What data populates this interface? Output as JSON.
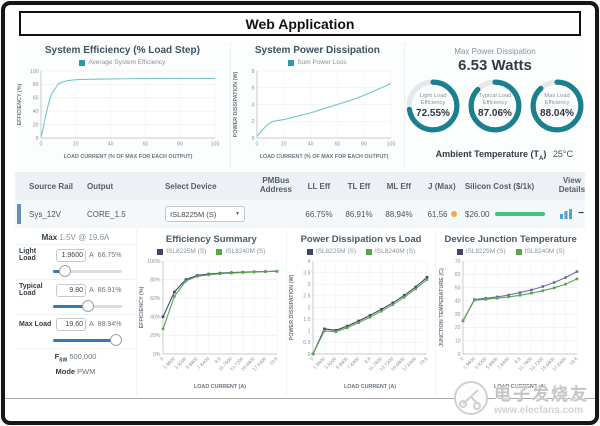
{
  "window": {
    "title": "Web Application"
  },
  "top": {
    "summary": {
      "max_power_label": "Max Power Dissipation",
      "max_power_value": "6.53 Watts",
      "gauges": [
        {
          "label1": "Light Load",
          "label2": "Efficiency",
          "value": "72.55%",
          "pct": 72.55
        },
        {
          "label1": "Typical Load",
          "label2": "Efficiency",
          "value": "87.06%",
          "pct": 87.06
        },
        {
          "label1": "Max Load",
          "label2": "Efficiency",
          "value": "88.04%",
          "pct": 88.04
        }
      ],
      "ambient_label_pre": "Ambient Temperature (T",
      "ambient_label_sub": "A",
      "ambient_label_post": ")",
      "ambient_value": "25°C"
    }
  },
  "table": {
    "headers": [
      "Source Rail",
      "Output",
      "Select Device",
      "PMBus Address",
      "LL Eff",
      "TL Eff",
      "ML Eff",
      "J (Max)",
      "Silicon Cost ($/1k)",
      "View Details"
    ],
    "row": {
      "source_rail": "Sys_12V",
      "output": "CORE_1.5",
      "device": "ISL8225M (S)",
      "caret": "▼",
      "pmbus": "",
      "ll_eff": "66.75%",
      "tl_eff": "86.91%",
      "ml_eff": "88.94%",
      "j_max": "61.56",
      "cost": "$26.00",
      "collapse": "−"
    }
  },
  "controls": {
    "max_label": "Max",
    "max_value": "1.5V @ 19.6A",
    "rows": [
      {
        "label": "Light Load",
        "value": "1.9600",
        "unit": "A",
        "pct": "66.75%",
        "slider": 10
      },
      {
        "label": "Typical Load",
        "value": "9.80",
        "unit": "A",
        "pct": "86.91%",
        "slider": 50
      },
      {
        "label": "Max Load",
        "value": "19.60",
        "unit": "A",
        "pct": "88.94%",
        "slider": 100
      }
    ],
    "fsw_label": "F",
    "fsw_sub": "SW",
    "fsw_value": "500,000",
    "mode_label": "Mode",
    "mode_value": "PWM"
  },
  "watermark": {
    "brand": "电子发烧友",
    "url": "www.elecfans.com"
  },
  "colors": {
    "teal_line": "#74c6c8",
    "teal_legend": "#2e9aa6",
    "gauge_ring": "#1a7f8e",
    "navy_series": "#41436a",
    "green_series": "#5aa44e",
    "accent_bar": "#6a8fb5",
    "cost_bar_green": "#41c47e",
    "warn_dot_yellow": "#eab13f"
  },
  "chart_data": [
    {
      "id": "system-efficiency",
      "type": "line",
      "title": "System Efficiency (% Load Step)",
      "xlabel": "LOAD CURRENT (% OF MAX FOR EACH OUTPUT)",
      "ylabel": "EFFICIENCY (%)",
      "xlim": [
        0,
        100
      ],
      "ylim": [
        0,
        100
      ],
      "xticks": [
        0,
        20,
        40,
        60,
        80,
        100
      ],
      "xtick_labels": [
        "0",
        "20",
        "40",
        "60",
        "80",
        "100"
      ],
      "yticks": [
        0,
        20,
        40,
        60,
        80,
        100
      ],
      "ytick_labels": [
        "0",
        "20",
        "40",
        "60",
        "80",
        "100"
      ],
      "rotate_x": false,
      "markers": false,
      "grid": true,
      "legend_position": "top",
      "series": [
        {
          "name": "Average System Efficiency",
          "color": "#74c6c8",
          "legend_color": "#2e9aa6",
          "x": [
            0,
            1,
            2,
            4,
            6,
            10,
            15,
            20,
            30,
            40,
            60,
            80,
            100
          ],
          "y": [
            2,
            12,
            25,
            48,
            65,
            81,
            85.5,
            87,
            87.8,
            88.2,
            88.6,
            88.8,
            89
          ]
        }
      ]
    },
    {
      "id": "system-power",
      "type": "line",
      "title": "System Power Dissipation",
      "xlabel": "LOAD CURRENT (% OF MAX FOR EACH OUTPUT)",
      "ylabel": "POWER DISSIPATION (W)",
      "xlim": [
        0,
        100
      ],
      "ylim": [
        0,
        8
      ],
      "xticks": [
        0,
        20,
        40,
        60,
        80,
        100
      ],
      "xtick_labels": [
        "0",
        "20",
        "40",
        "60",
        "80",
        "100"
      ],
      "yticks": [
        0,
        2,
        4,
        6,
        8
      ],
      "ytick_labels": [
        "0",
        "2",
        "4",
        "6",
        "8"
      ],
      "rotate_x": false,
      "markers": false,
      "grid": true,
      "legend_position": "top",
      "series": [
        {
          "name": "Sum Power Loss",
          "color": "#74c6c8",
          "legend_color": "#2e9aa6",
          "x": [
            0,
            3,
            8,
            12,
            20,
            30,
            40,
            50,
            60,
            70,
            80,
            90,
            100
          ],
          "y": [
            0.2,
            0.8,
            1.6,
            2.0,
            2.2,
            2.6,
            3.0,
            3.5,
            4.0,
            4.5,
            5.1,
            5.8,
            6.5
          ]
        }
      ]
    },
    {
      "id": "efficiency-summary",
      "type": "line",
      "title": "Efficiency Summary",
      "xlabel": "LOAD CURRENT (A)",
      "ylabel": "EFFICIENCY (%)",
      "xlim": [
        0,
        10
      ],
      "ylim": [
        0,
        100
      ],
      "xticks": [
        0,
        1,
        2,
        3,
        4,
        5,
        6,
        7,
        8,
        9,
        10
      ],
      "xtick_labels": [
        "0",
        "1.9600",
        "3.9200",
        "5.8800",
        "7.8400",
        "9.8",
        "11.7600",
        "13.7200",
        "15.6800",
        "17.6400",
        "19.6"
      ],
      "yticks": [
        0,
        20,
        40,
        60,
        80,
        100
      ],
      "ytick_labels": [
        "0%",
        "20%",
        "40%",
        "60%",
        "80%",
        "100%"
      ],
      "rotate_x": true,
      "markers": true,
      "grid": true,
      "legend_position": "top",
      "series": [
        {
          "name": "ISL8225M (S)",
          "color": "#41436a",
          "legend_color": "#41436a",
          "x": [
            0,
            1,
            2,
            3,
            4,
            5,
            6,
            7,
            8,
            9,
            10
          ],
          "y": [
            40,
            66.75,
            80,
            84.5,
            86,
            86.91,
            87.5,
            88,
            88.4,
            88.7,
            88.9
          ]
        },
        {
          "name": "ISL8240M (S)",
          "color": "#5aa44e",
          "legend_color": "#5aa44e",
          "x": [
            0,
            1,
            2,
            3,
            4,
            5,
            6,
            7,
            8,
            9,
            10
          ],
          "y": [
            27,
            62,
            78.5,
            83.5,
            85.2,
            86.3,
            87,
            87.6,
            88.1,
            88.5,
            89
          ]
        }
      ]
    },
    {
      "id": "power-vs-load",
      "type": "line",
      "title": "Power Dissipation vs Load",
      "xlabel": "LOAD CURRENT (A)",
      "ylabel": "POWER DISSIPATION (W)",
      "xlim": [
        0,
        10
      ],
      "ylim": [
        0,
        4
      ],
      "xticks": [
        0,
        1,
        2,
        3,
        4,
        5,
        6,
        7,
        8,
        9,
        10
      ],
      "xtick_labels": [
        "0",
        "1.9600",
        "3.9200",
        "5.8800",
        "7.8400",
        "9.8",
        "11.7600",
        "13.7200",
        "15.6800",
        "17.6400",
        "19.6"
      ],
      "yticks": [
        0,
        0.5,
        1,
        1.5,
        2,
        2.5,
        3,
        3.5,
        4
      ],
      "ytick_labels": [
        "0",
        "0.5",
        "1",
        "1.5",
        "2",
        "2.5",
        "3",
        "3.5",
        "4"
      ],
      "rotate_x": true,
      "markers": true,
      "grid": true,
      "legend_position": "top",
      "series": [
        {
          "name": "ISL8225M (S)",
          "color": "#41436a",
          "legend_color": "#41436a",
          "x": [
            0,
            1,
            2,
            3,
            4,
            5,
            6,
            7,
            8,
            9,
            10
          ],
          "y": [
            0,
            1.08,
            1.02,
            1.2,
            1.42,
            1.66,
            1.92,
            2.2,
            2.52,
            2.88,
            3.3
          ]
        },
        {
          "name": "ISL8240M (S)",
          "color": "#5aa44e",
          "legend_color": "#5aa44e",
          "x": [
            0,
            1,
            2,
            3,
            4,
            5,
            6,
            7,
            8,
            9,
            10
          ],
          "y": [
            0,
            1.0,
            0.96,
            1.13,
            1.35,
            1.58,
            1.84,
            2.12,
            2.44,
            2.8,
            3.2
          ]
        }
      ]
    },
    {
      "id": "junction-temp",
      "type": "line",
      "title": "Device Junction Temperature",
      "xlabel": "LOAD CURRENT (A)",
      "ylabel": "JUNCTION TEMPERATURE (C)",
      "xlim": [
        0,
        10
      ],
      "ylim": [
        0,
        70
      ],
      "xticks": [
        0,
        1,
        2,
        3,
        4,
        5,
        6,
        7,
        8,
        9,
        10
      ],
      "xtick_labels": [
        "0",
        "1.9600",
        "3.9200",
        "5.8800",
        "7.8400",
        "9.8",
        "11.7600",
        "13.7200",
        "15.6800",
        "17.6400",
        "19.6"
      ],
      "yticks": [
        0,
        10,
        20,
        30,
        40,
        50,
        60,
        70
      ],
      "ytick_labels": [
        "0",
        "10",
        "20",
        "30",
        "40",
        "50",
        "60",
        "70"
      ],
      "rotate_x": true,
      "markers": true,
      "grid": true,
      "legend_position": "top",
      "series": [
        {
          "name": "ISL8225M (S)",
          "color": "#6f68a8",
          "legend_color": "#41436a",
          "x": [
            0,
            1,
            2,
            3,
            4,
            5,
            6,
            7,
            8,
            9,
            10
          ],
          "y": [
            25,
            41,
            42,
            43,
            44.4,
            46.2,
            48.2,
            50.8,
            53.8,
            57.6,
            62
          ]
        },
        {
          "name": "ISL8240M (S)",
          "color": "#5aa44e",
          "legend_color": "#5aa44e",
          "x": [
            0,
            1,
            2,
            3,
            4,
            5,
            6,
            7,
            8,
            9,
            10
          ],
          "y": [
            25,
            40.5,
            41.2,
            42,
            43,
            44.2,
            45.8,
            47.6,
            49.8,
            52.6,
            56.5
          ]
        }
      ]
    }
  ]
}
